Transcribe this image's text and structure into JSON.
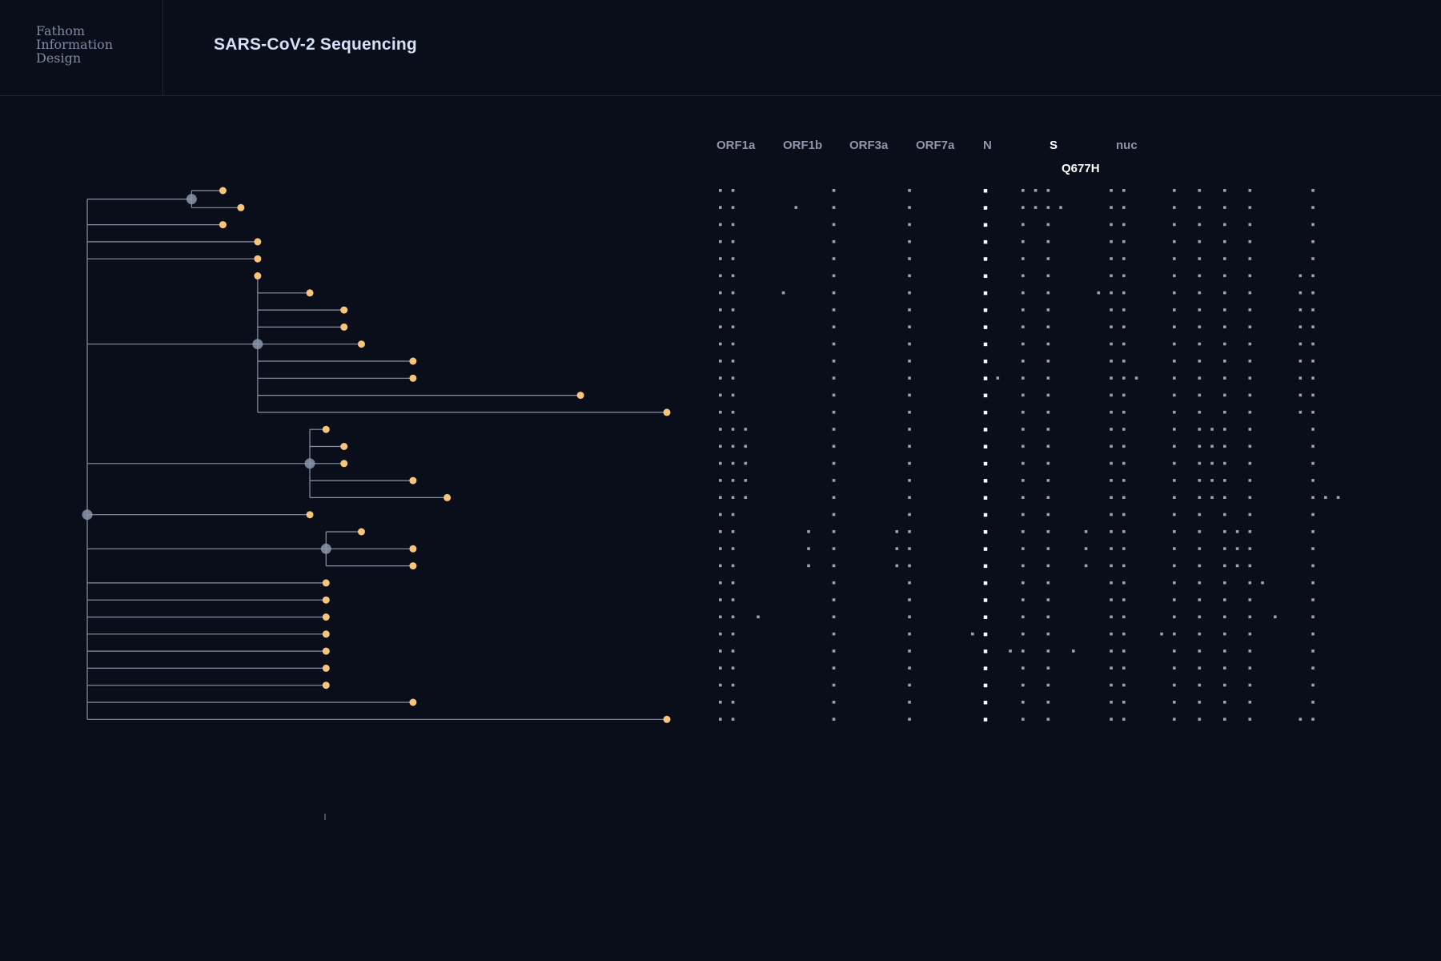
{
  "header": {
    "logo_lines": [
      "Fathom",
      "Information",
      "Design"
    ],
    "title": "SARS-CoV-2 Sequencing"
  },
  "genes": {
    "labels": [
      "ORF1a",
      "ORF1b",
      "ORF3a",
      "ORF7a",
      "N",
      "S",
      "nuc"
    ],
    "active": "S",
    "highlighted_mutation": "Q677H"
  },
  "colors": {
    "background": "#0a0e1b",
    "branch": "#8a93a3",
    "internal_node": "#8c97ab",
    "leaf_node": "#f8c37a",
    "mutation_dot": "#9aa2b2",
    "highlight_dot": "#ffffff"
  },
  "tree": {
    "root_depth": 0,
    "internal_nodes": [
      {
        "id": "n1",
        "depth": 0.18,
        "parent": "root"
      },
      {
        "id": "n2",
        "depth": 0.294,
        "parent": "root"
      },
      {
        "id": "n3",
        "depth": 0.384,
        "parent": "root"
      },
      {
        "id": "n4",
        "depth": 0.412,
        "parent": "root"
      }
    ],
    "leaves": [
      {
        "parent": "n1",
        "depth": 0.234
      },
      {
        "parent": "n1",
        "depth": 0.265
      },
      {
        "parent": "root",
        "depth": 0.234
      },
      {
        "parent": "root",
        "depth": 0.294
      },
      {
        "parent": "root",
        "depth": 0.294
      },
      {
        "parent": "n2",
        "depth": 0.294
      },
      {
        "parent": "n2",
        "depth": 0.384
      },
      {
        "parent": "n2",
        "depth": 0.443
      },
      {
        "parent": "n2",
        "depth": 0.443
      },
      {
        "parent": "n2",
        "depth": 0.473
      },
      {
        "parent": "n2",
        "depth": 0.562
      },
      {
        "parent": "n2",
        "depth": 0.562
      },
      {
        "parent": "n2",
        "depth": 0.851
      },
      {
        "parent": "n2",
        "depth": 1.0
      },
      {
        "parent": "n3",
        "depth": 0.412
      },
      {
        "parent": "n3",
        "depth": 0.443
      },
      {
        "parent": "n3",
        "depth": 0.443
      },
      {
        "parent": "n3",
        "depth": 0.562
      },
      {
        "parent": "n3",
        "depth": 0.621
      },
      {
        "parent": "root",
        "depth": 0.384
      },
      {
        "parent": "n4",
        "depth": 0.473
      },
      {
        "parent": "n4",
        "depth": 0.562
      },
      {
        "parent": "n4",
        "depth": 0.562
      },
      {
        "parent": "root",
        "depth": 0.412
      },
      {
        "parent": "root",
        "depth": 0.412
      },
      {
        "parent": "root",
        "depth": 0.412
      },
      {
        "parent": "root",
        "depth": 0.412
      },
      {
        "parent": "root",
        "depth": 0.412
      },
      {
        "parent": "root",
        "depth": 0.412
      },
      {
        "parent": "root",
        "depth": 0.412
      },
      {
        "parent": "root",
        "depth": 0.562
      },
      {
        "parent": "root",
        "depth": 1.0
      }
    ]
  },
  "mutations": {
    "rows": 32,
    "constant_columns": [
      0,
      1,
      9,
      15,
      21,
      24,
      26,
      31,
      32,
      36,
      38,
      40,
      42,
      47
    ],
    "highlight_column": 21,
    "rows_extra": [
      {
        "row": 0,
        "cols": [
          25
        ]
      },
      {
        "row": 1,
        "cols": [
          6,
          25,
          27
        ]
      },
      {
        "row": 5,
        "cols": [
          46
        ]
      },
      {
        "row": 6,
        "cols": [
          5,
          30,
          46
        ]
      },
      {
        "row": 7,
        "cols": [
          46
        ]
      },
      {
        "row": 8,
        "cols": [
          46
        ]
      },
      {
        "row": 9,
        "cols": [
          46
        ]
      },
      {
        "row": 10,
        "cols": [
          46
        ]
      },
      {
        "row": 11,
        "cols": [
          22,
          33,
          46
        ]
      },
      {
        "row": 12,
        "cols": [
          46
        ]
      },
      {
        "row": 13,
        "cols": [
          46
        ]
      },
      {
        "row": 14,
        "cols": [
          2,
          39
        ]
      },
      {
        "row": 15,
        "cols": [
          2,
          39
        ]
      },
      {
        "row": 16,
        "cols": [
          2,
          39
        ]
      },
      {
        "row": 17,
        "cols": [
          2,
          39
        ]
      },
      {
        "row": 18,
        "cols": [
          2,
          39,
          48,
          49
        ]
      },
      {
        "row": 20,
        "cols": [
          7,
          14,
          29,
          41
        ]
      },
      {
        "row": 21,
        "cols": [
          7,
          14,
          29,
          41
        ]
      },
      {
        "row": 22,
        "cols": [
          7,
          14,
          29,
          41
        ]
      },
      {
        "row": 23,
        "cols": [
          43
        ]
      },
      {
        "row": 25,
        "cols": [
          3,
          44
        ]
      },
      {
        "row": 26,
        "cols": [
          20,
          35
        ]
      },
      {
        "row": 27,
        "cols": [
          23,
          28
        ]
      },
      {
        "row": 31,
        "cols": [
          46
        ]
      }
    ]
  }
}
